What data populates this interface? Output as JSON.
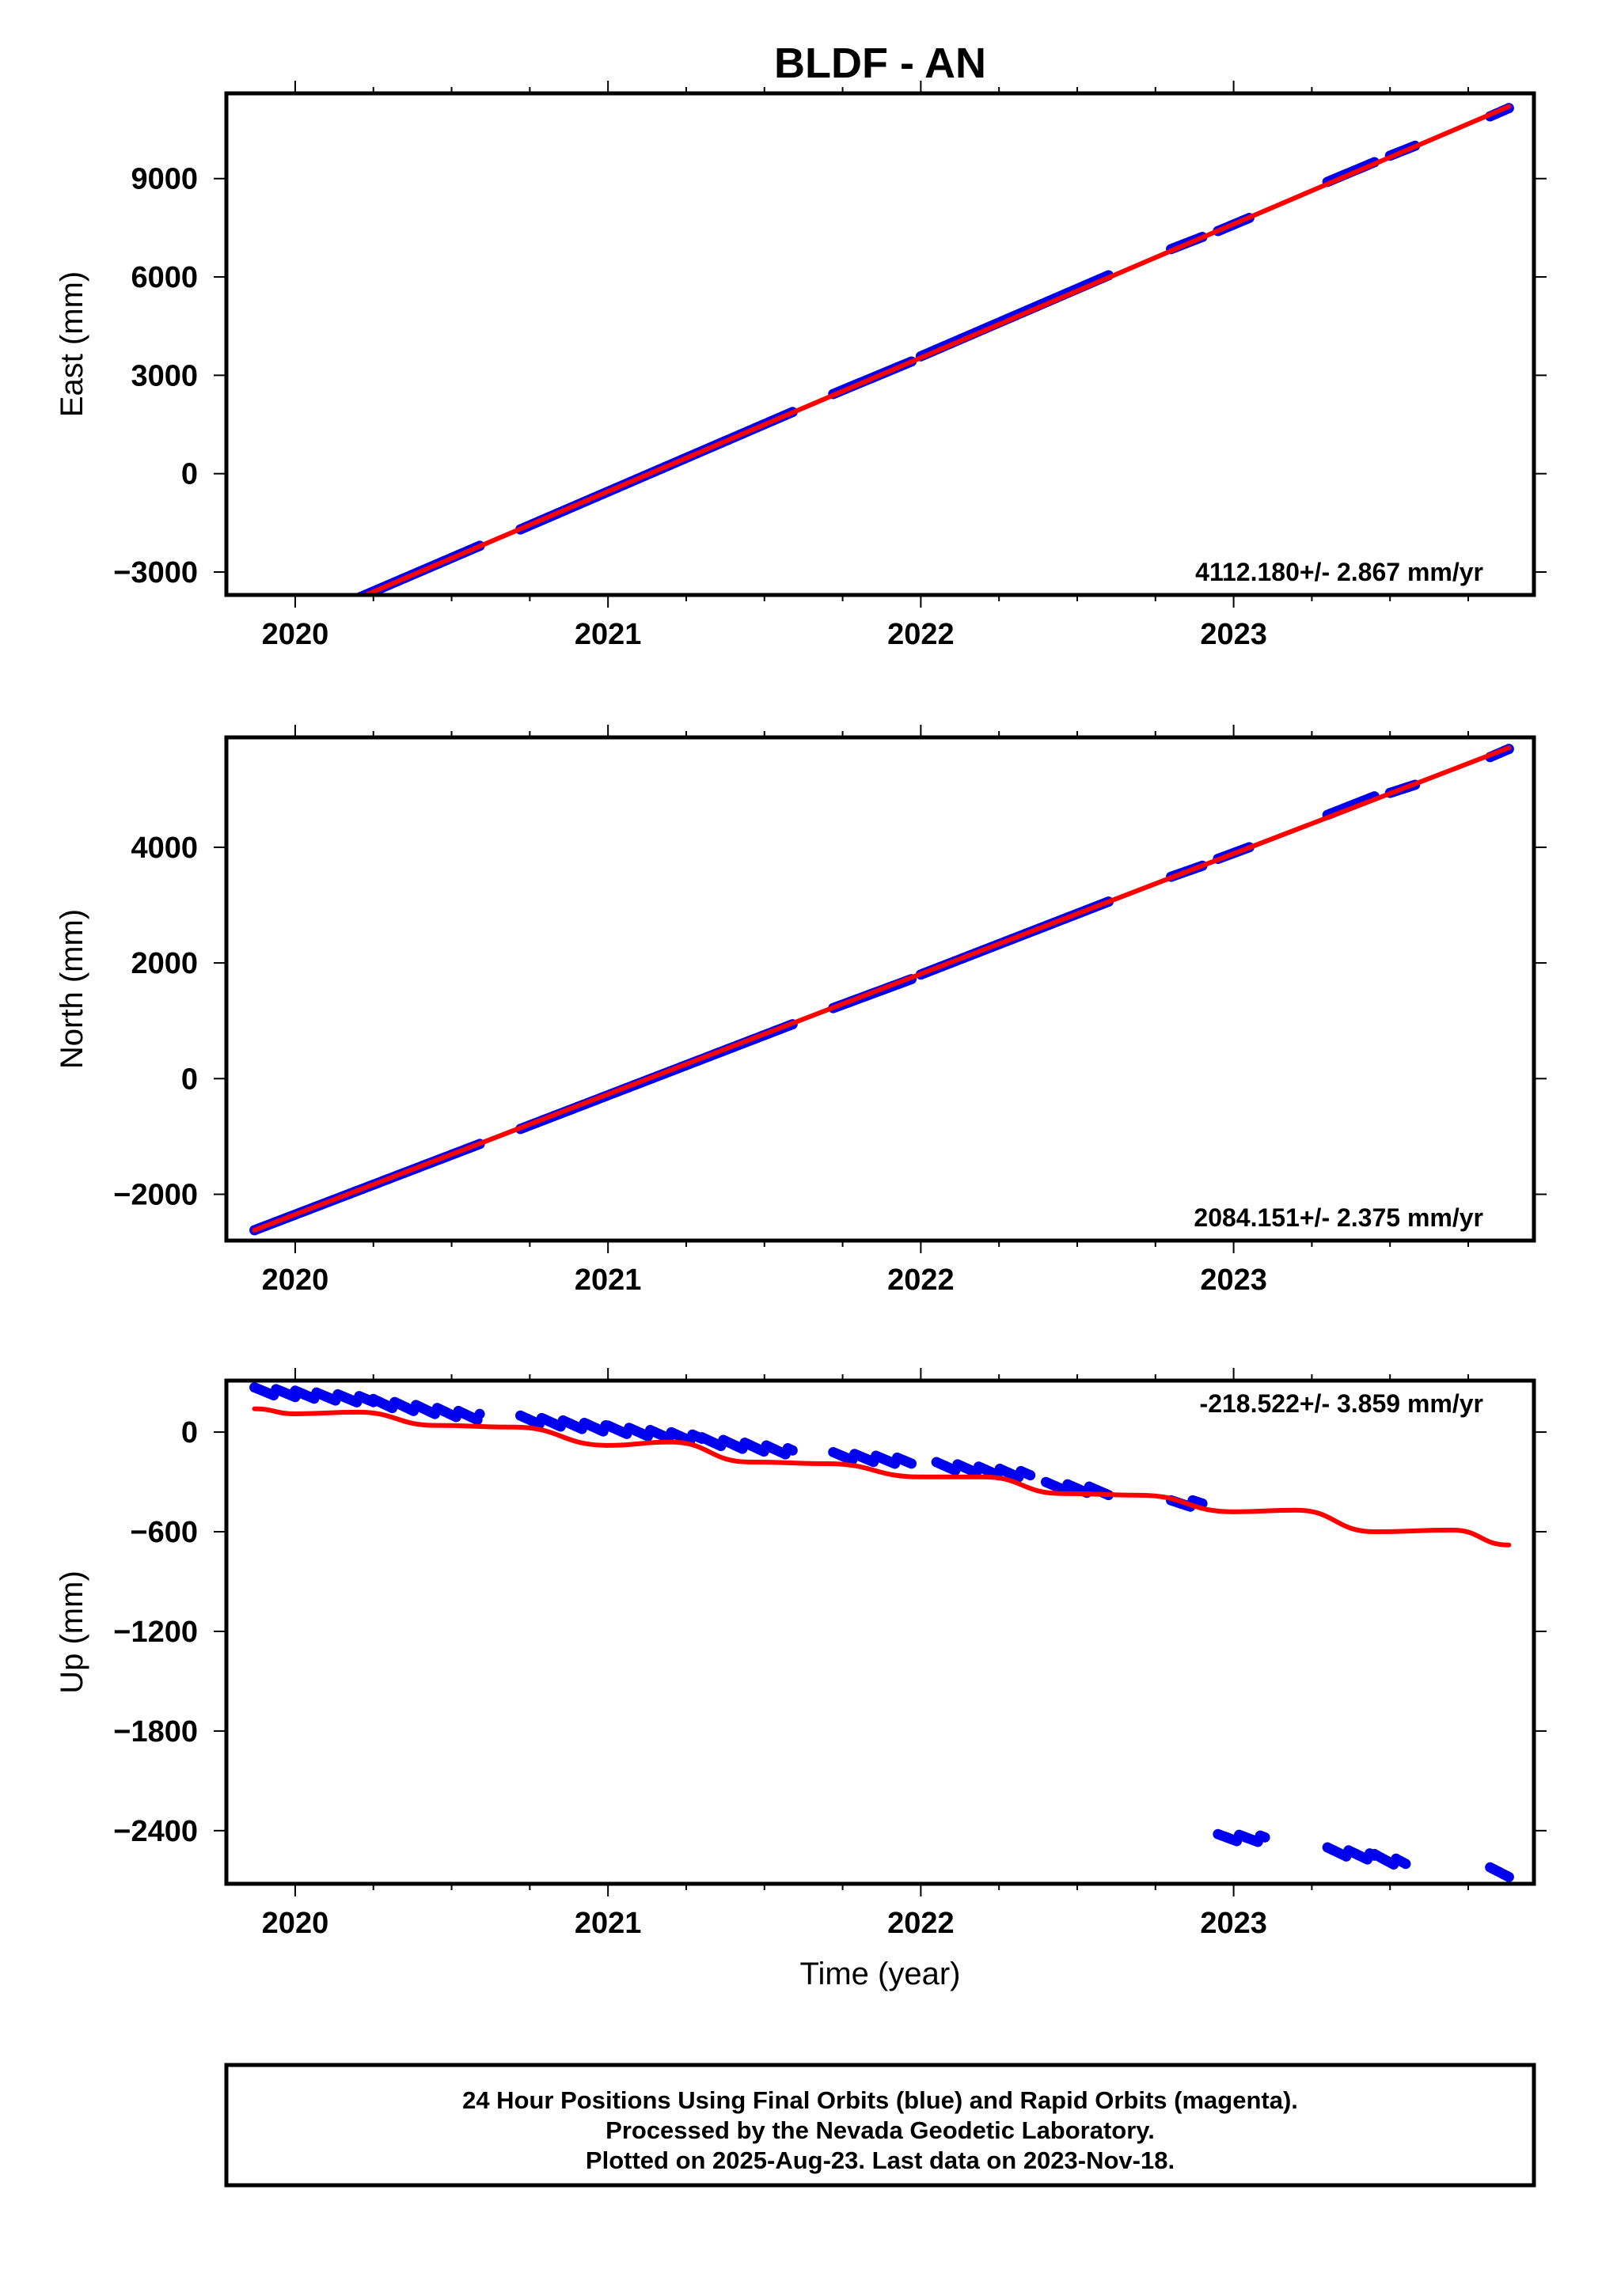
{
  "title": "BLDF - AN",
  "xlabel": "Time (year)",
  "footer": {
    "line1": "24 Hour Positions Using Final Orbits (blue) and Rapid Orbits (magenta).",
    "line2": "Processed by the Nevada Geodetic Laboratory.",
    "line3": "Plotted on 2025-Aug-23. Last data on 2023-Nov-18."
  },
  "colors": {
    "data": "#0000ee",
    "model": "#ff0000",
    "frame": "#000000"
  },
  "chart_data": [
    {
      "type": "scatter",
      "ylabel": "East (mm)",
      "rate_label": "4112.180+/- 2.867 mm/yr",
      "xlim": [
        2019.78,
        2023.96
      ],
      "ylim": [
        -3700,
        11600
      ],
      "xticks": [
        2020,
        2021,
        2022,
        2023
      ],
      "xtick_labels": [
        "2020",
        "2021",
        "2022",
        "2023"
      ],
      "yticks": [
        -3000,
        0,
        3000,
        6000,
        9000
      ],
      "ytick_labels": [
        "−3000",
        "0",
        "3000",
        "6000",
        "9000"
      ],
      "data_segments": [
        {
          "x": [
            2019.87,
            2020.59
          ],
          "y": [
            -5150,
            -2200
          ]
        },
        {
          "x": [
            2020.72,
            2021.59
          ],
          "y": [
            -1700,
            1880
          ]
        },
        {
          "x": [
            2021.72,
            2021.97
          ],
          "y": [
            2430,
            3420
          ]
        },
        {
          "x": [
            2022.0,
            2022.6
          ],
          "y": [
            3580,
            6050
          ]
        },
        {
          "x": [
            2022.8,
            2022.9
          ],
          "y": [
            6850,
            7220
          ]
        },
        {
          "x": [
            2022.95,
            2023.05
          ],
          "y": [
            7400,
            7800
          ]
        },
        {
          "x": [
            2023.3,
            2023.45
          ],
          "y": [
            8900,
            9500
          ]
        },
        {
          "x": [
            2023.5,
            2023.58
          ],
          "y": [
            9700,
            10000
          ]
        },
        {
          "x": [
            2023.82,
            2023.88
          ],
          "y": [
            10900,
            11150
          ]
        }
      ],
      "model": {
        "x": [
          2019.87,
          2023.88
        ],
        "y": [
          -5150,
          11200
        ]
      }
    },
    {
      "type": "scatter",
      "ylabel": "North (mm)",
      "rate_label": "2084.151+/- 2.375 mm/yr",
      "xlim": [
        2019.78,
        2023.96
      ],
      "ylim": [
        -2800,
        5900
      ],
      "xticks": [
        2020,
        2021,
        2022,
        2023
      ],
      "xtick_labels": [
        "2020",
        "2021",
        "2022",
        "2023"
      ],
      "yticks": [
        -2000,
        0,
        2000,
        4000
      ],
      "ytick_labels": [
        "−2000",
        "0",
        "2000",
        "4000"
      ],
      "data_segments": [
        {
          "x": [
            2019.87,
            2020.59
          ],
          "y": [
            -2620,
            -1130
          ]
        },
        {
          "x": [
            2020.72,
            2021.59
          ],
          "y": [
            -870,
            940
          ]
        },
        {
          "x": [
            2021.72,
            2021.97
          ],
          "y": [
            1220,
            1720
          ]
        },
        {
          "x": [
            2022.0,
            2022.6
          ],
          "y": [
            1800,
            3060
          ]
        },
        {
          "x": [
            2022.8,
            2022.9
          ],
          "y": [
            3490,
            3680
          ]
        },
        {
          "x": [
            2022.95,
            2023.05
          ],
          "y": [
            3800,
            4000
          ]
        },
        {
          "x": [
            2023.3,
            2023.45
          ],
          "y": [
            4560,
            4880
          ]
        },
        {
          "x": [
            2023.5,
            2023.58
          ],
          "y": [
            4940,
            5080
          ]
        },
        {
          "x": [
            2023.82,
            2023.88
          ],
          "y": [
            5560,
            5700
          ]
        }
      ],
      "model": {
        "x": [
          2019.87,
          2023.88
        ],
        "y": [
          -2620,
          5720
        ]
      }
    },
    {
      "type": "scatter",
      "ylabel": "Up (mm)",
      "rate_label": "-218.522+/- 3.859 mm/yr",
      "xlim": [
        2019.78,
        2023.96
      ],
      "ylim": [
        -2720,
        310
      ],
      "xticks": [
        2020,
        2021,
        2022,
        2023
      ],
      "xtick_labels": [
        "2020",
        "2021",
        "2022",
        "2023"
      ],
      "yticks": [
        -2400,
        -1800,
        -1200,
        -600,
        0
      ],
      "ytick_labels": [
        "−2400",
        "−1800",
        "−1200",
        "−600",
        "0"
      ],
      "data_segments": [
        {
          "x": [
            2019.87,
            2020.0
          ],
          "y": [
            250,
            230
          ]
        },
        {
          "x": [
            2020.0,
            2020.25
          ],
          "y": [
            230,
            190
          ]
        },
        {
          "x": [
            2020.25,
            2020.59
          ],
          "y": [
            180,
            90
          ]
        },
        {
          "x": [
            2020.72,
            2021.0
          ],
          "y": [
            80,
            20
          ]
        },
        {
          "x": [
            2021.0,
            2021.3
          ],
          "y": [
            20,
            -40
          ]
        },
        {
          "x": [
            2021.3,
            2021.59
          ],
          "y": [
            -50,
            -120
          ]
        },
        {
          "x": [
            2021.72,
            2021.97
          ],
          "y": [
            -140,
            -180
          ]
        },
        {
          "x": [
            2022.05,
            2022.35
          ],
          "y": [
            -200,
            -260
          ]
        },
        {
          "x": [
            2022.4,
            2022.6
          ],
          "y": [
            -320,
            -360
          ]
        },
        {
          "x": [
            2022.8,
            2022.9
          ],
          "y": [
            -430,
            -430
          ]
        },
        {
          "x": [
            2022.95,
            2023.1
          ],
          "y": [
            -2440,
            -2450
          ]
        },
        {
          "x": [
            2023.3,
            2023.45
          ],
          "y": [
            -2520,
            -2560
          ]
        },
        {
          "x": [
            2023.45,
            2023.55
          ],
          "y": [
            -2560,
            -2600
          ]
        },
        {
          "x": [
            2023.82,
            2023.88
          ],
          "y": [
            -2640,
            -2660
          ]
        }
      ],
      "model": {
        "x": [
          2019.87,
          2020.0,
          2020.2,
          2020.45,
          2020.7,
          2021.0,
          2021.2,
          2021.45,
          2021.7,
          2022.0,
          2022.2,
          2022.45,
          2022.7,
          2023.0,
          2023.2,
          2023.45,
          2023.7,
          2023.88
        ],
        "y": [
          140,
          110,
          120,
          40,
          30,
          -80,
          -60,
          -180,
          -190,
          -270,
          -270,
          -370,
          -380,
          -480,
          -470,
          -600,
          -590,
          -680
        ]
      }
    }
  ]
}
